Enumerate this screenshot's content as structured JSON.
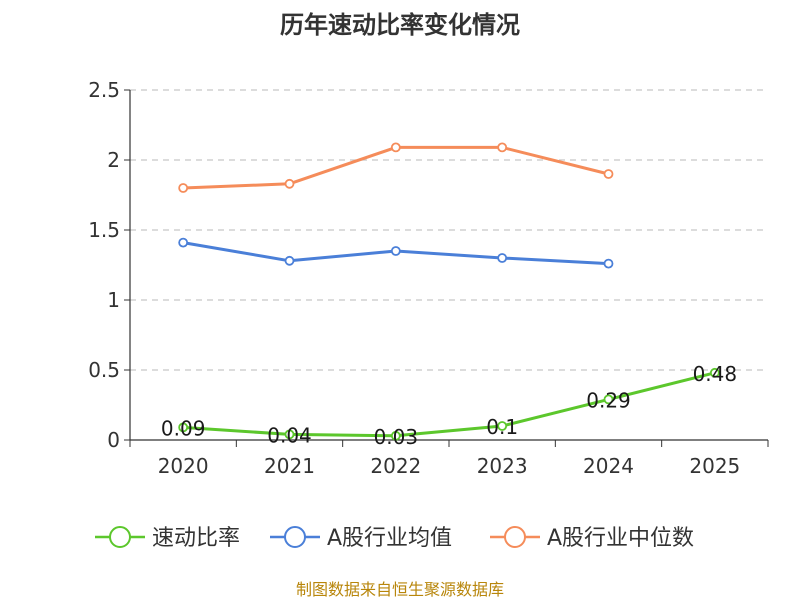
{
  "chart_data": {
    "type": "line",
    "title": "历年速动比率变化情况",
    "categories": [
      "2020",
      "2021",
      "2022",
      "2023",
      "2024",
      "2025"
    ],
    "ylim": [
      0,
      2.5
    ],
    "yticks": [
      "0",
      "0.5",
      "1",
      "1.5",
      "2",
      "2.5"
    ],
    "grid": "horizontal-dashed",
    "legend_position": "bottom",
    "series": [
      {
        "name": "速动比率",
        "color": "#5cc72c",
        "values": [
          0.09,
          0.04,
          0.03,
          0.1,
          0.29,
          0.48
        ],
        "labels": [
          "0.09",
          "0.04",
          "0.03",
          "0.1",
          "0.29",
          "0.48"
        ]
      },
      {
        "name": "A股行业均值",
        "color": "#4a7fd8",
        "values": [
          1.41,
          1.28,
          1.35,
          1.3,
          1.26,
          null
        ]
      },
      {
        "name": "A股行业中位数",
        "color": "#f58c5a",
        "values": [
          1.8,
          1.83,
          2.09,
          2.09,
          1.9,
          null
        ]
      }
    ],
    "source": "制图数据来自恒生聚源数据库"
  }
}
